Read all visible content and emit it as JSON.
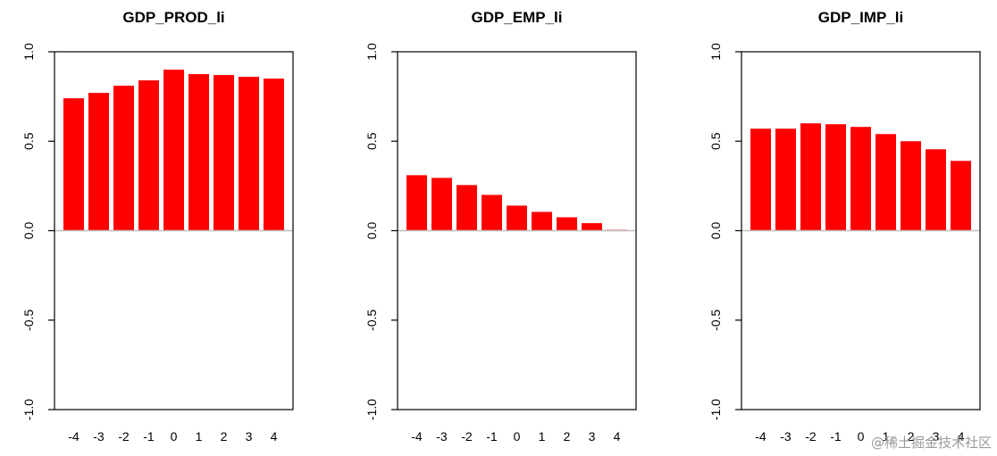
{
  "chart_data": [
    {
      "type": "bar",
      "title": "GDP_PROD_li",
      "categories": [
        "-4",
        "-3",
        "-2",
        "-1",
        "0",
        "1",
        "2",
        "3",
        "4"
      ],
      "values": [
        0.74,
        0.77,
        0.81,
        0.84,
        0.9,
        0.875,
        0.87,
        0.86,
        0.85
      ],
      "ylim": [
        -1.0,
        1.0
      ],
      "yticks": [
        "-1.0",
        "-0.5",
        "0.0",
        "0.5",
        "1.0"
      ],
      "bar_color": "#ff0000",
      "zero_line_color": "#bdbdbd"
    },
    {
      "type": "bar",
      "title": "GDP_EMP_li",
      "categories": [
        "-4",
        "-3",
        "-2",
        "-1",
        "0",
        "1",
        "2",
        "3",
        "4"
      ],
      "values": [
        0.31,
        0.295,
        0.255,
        0.2,
        0.14,
        0.105,
        0.075,
        0.042,
        0.005
      ],
      "ylim": [
        -1.0,
        1.0
      ],
      "yticks": [
        "-1.0",
        "-0.5",
        "0.0",
        "0.5",
        "1.0"
      ],
      "bar_color": "#ff0000",
      "zero_line_color": "#bdbdbd"
    },
    {
      "type": "bar",
      "title": "GDP_IMP_li",
      "categories": [
        "-4",
        "-3",
        "-2",
        "-1",
        "0",
        "1",
        "2",
        "3",
        "4"
      ],
      "values": [
        0.57,
        0.57,
        0.6,
        0.595,
        0.58,
        0.54,
        0.5,
        0.455,
        0.39
      ],
      "ylim": [
        -1.0,
        1.0
      ],
      "yticks": [
        "-1.0",
        "-0.5",
        "0.0",
        "0.5",
        "1.0"
      ],
      "bar_color": "#ff0000",
      "zero_line_color": "#bdbdbd"
    }
  ],
  "watermark": "@稀土掘金技术社区"
}
